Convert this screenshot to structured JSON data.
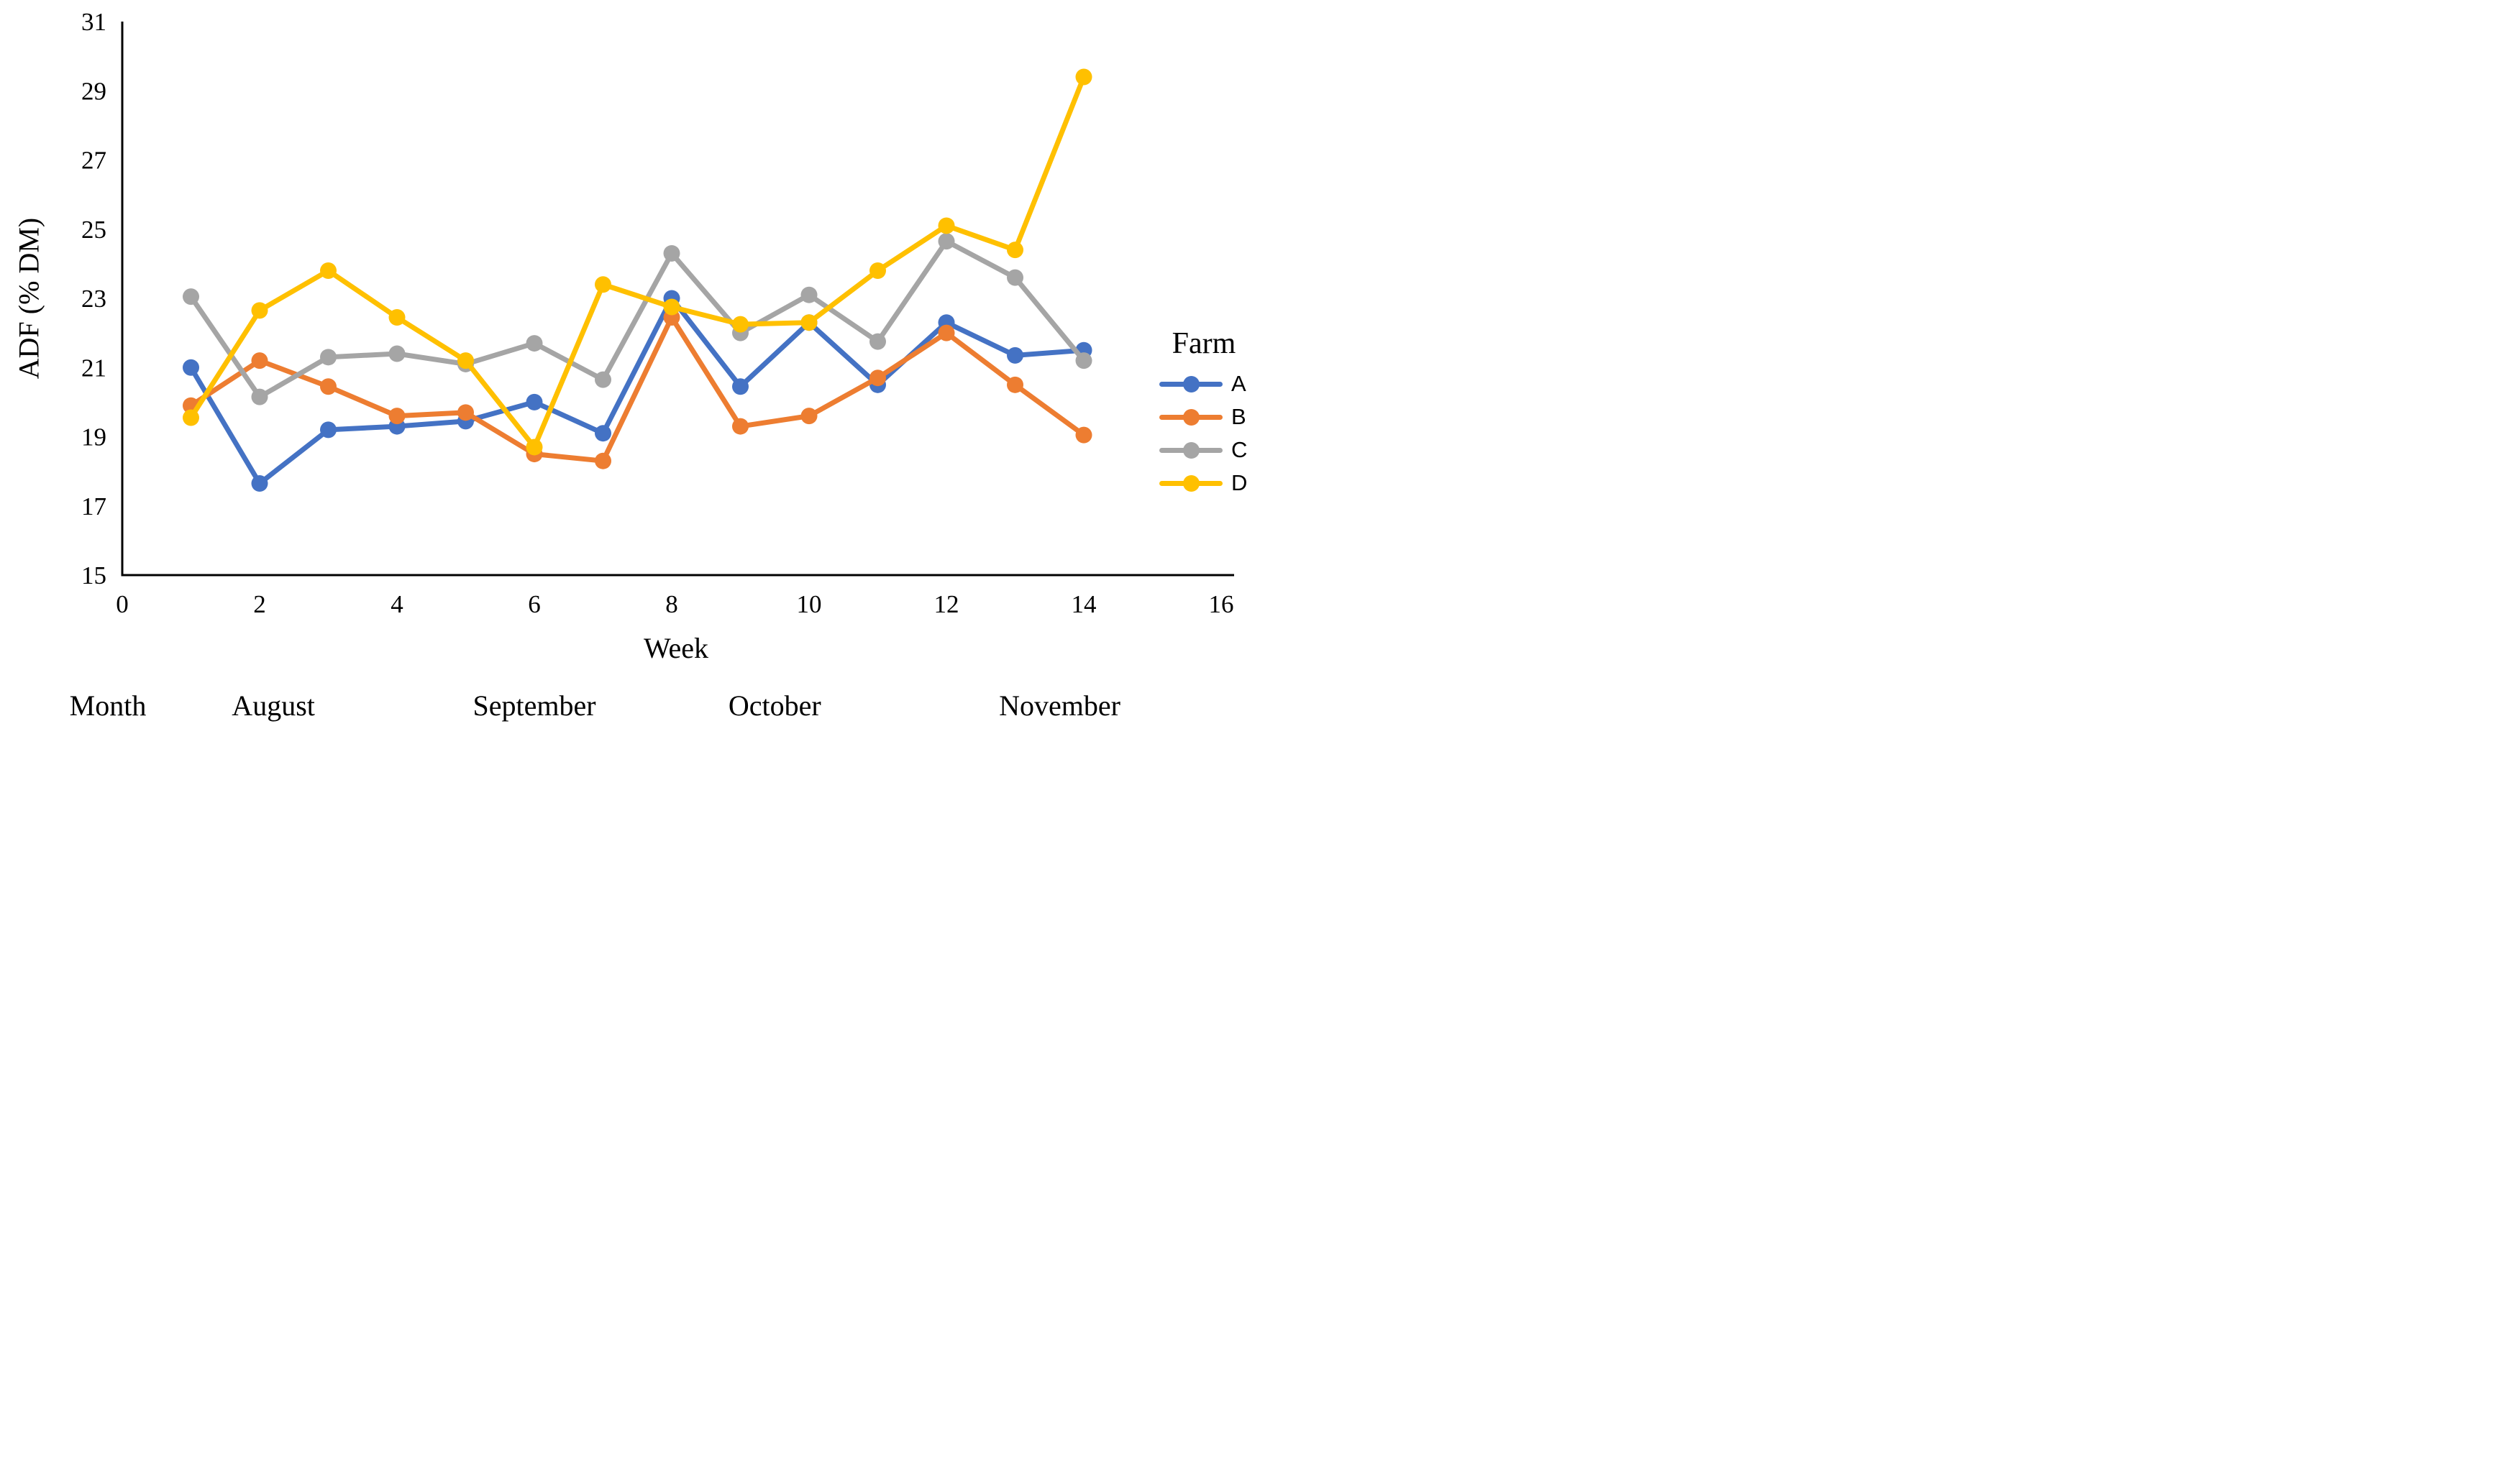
{
  "chart_data": {
    "type": "line",
    "title": "",
    "xlabel": "Week",
    "ylabel": "ADF (% DM)",
    "x_axis": {
      "ticks": [
        0,
        2,
        4,
        6,
        8,
        10,
        12,
        14,
        16
      ],
      "range": [
        0,
        16
      ]
    },
    "y_axis": {
      "ticks": [
        15,
        17,
        19,
        21,
        23,
        25,
        27,
        29,
        31
      ],
      "range": [
        15,
        31
      ]
    },
    "grid": false,
    "weeks": [
      1,
      2,
      3,
      4,
      5,
      6,
      7,
      8,
      9,
      10,
      11,
      12,
      13,
      14
    ],
    "series": [
      {
        "name": "A",
        "color": "#4472C4",
        "values": [
          21.0,
          17.65,
          19.2,
          19.3,
          19.45,
          20.0,
          19.1,
          23.0,
          20.45,
          22.3,
          20.5,
          22.3,
          21.35,
          21.5
        ]
      },
      {
        "name": "B",
        "color": "#ED7D31",
        "values": [
          19.9,
          21.2,
          20.45,
          19.6,
          19.7,
          18.5,
          18.3,
          22.45,
          19.3,
          19.6,
          20.7,
          22.0,
          20.5,
          19.05
        ]
      },
      {
        "name": "C",
        "color": "#A5A5A5",
        "values": [
          23.05,
          20.15,
          21.3,
          21.4,
          21.1,
          21.7,
          20.65,
          24.3,
          22.0,
          23.1,
          21.75,
          24.65,
          23.6,
          21.2
        ]
      },
      {
        "name": "D",
        "color": "#FFC000",
        "values": [
          19.55,
          22.65,
          23.8,
          22.45,
          21.2,
          18.7,
          23.4,
          22.75,
          22.25,
          22.3,
          23.8,
          25.1,
          24.4,
          29.4
        ]
      }
    ],
    "legend": {
      "title": "Farm",
      "position": "right"
    },
    "month_row": {
      "label": "Month",
      "items": [
        {
          "name": "August",
          "week_center": 2.2
        },
        {
          "name": "September",
          "week_center": 6.0
        },
        {
          "name": "October",
          "week_center": 9.5
        },
        {
          "name": "November",
          "week_center": 13.65
        }
      ]
    }
  }
}
